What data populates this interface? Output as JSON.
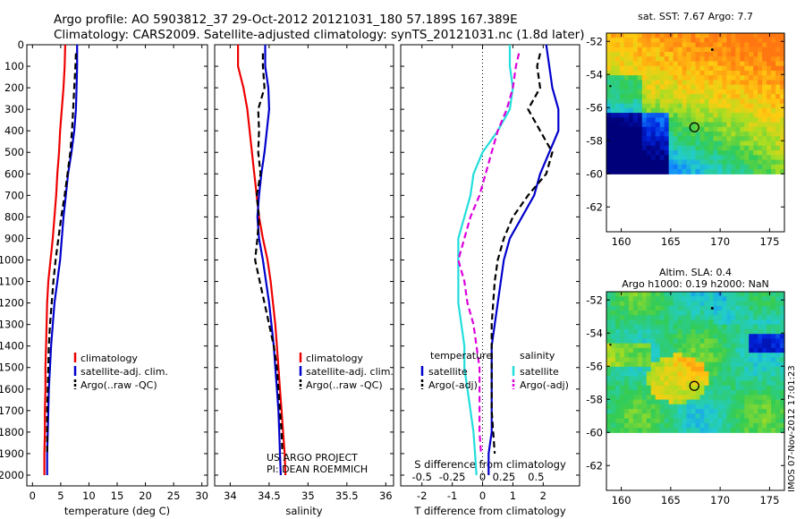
{
  "header": {
    "line1": "Argo profile: AO 5903812_37 29-Oct-2012 20121031_180 57.189S 167.389E",
    "line2": "Climatology: CARS2009. Satellite-adjusted climatology: synTS_20121031.nc (1.8d later)"
  },
  "colors": {
    "climatology": "#ee0000",
    "satellite": "#0000cc",
    "argo": "#000000",
    "sal_satellite": "#22dddd",
    "sal_argo": "#dd00dd"
  },
  "chart_data": [
    {
      "type": "line",
      "id": "temperature",
      "xlabel": "temperature (deg C)",
      "ylabel": "",
      "xlim": [
        -1,
        31
      ],
      "ylim": [
        2050,
        0
      ],
      "xticks": [
        0,
        5,
        10,
        15,
        20,
        25,
        30
      ],
      "yticks": [
        0,
        100,
        200,
        300,
        400,
        500,
        600,
        700,
        800,
        900,
        1000,
        1100,
        1200,
        1300,
        1400,
        1500,
        1600,
        1700,
        1800,
        1900,
        2000
      ],
      "legend": [
        "climatology",
        "satellite-adj. clim.",
        "Argo(..raw -QC)"
      ],
      "series": [
        {
          "name": "climatology",
          "style": "red-solid",
          "x": [
            5.8,
            5.7,
            5.5,
            5.2,
            4.9,
            4.7,
            4.4,
            4.2,
            3.9,
            3.6,
            3.2,
            2.8,
            2.6,
            2.5,
            2.4,
            2.3,
            2.3,
            2.2,
            2.2,
            2.1,
            2.1
          ],
          "y": [
            0,
            100,
            200,
            300,
            400,
            500,
            600,
            700,
            800,
            900,
            1000,
            1100,
            1200,
            1300,
            1400,
            1500,
            1600,
            1700,
            1800,
            1900,
            2000
          ]
        },
        {
          "name": "satellite-adj. clim.",
          "style": "blue-solid",
          "x": [
            7.9,
            7.9,
            7.8,
            7.7,
            7.4,
            6.9,
            6.3,
            5.9,
            5.5,
            5.2,
            4.9,
            4.4,
            3.9,
            3.6,
            3.3,
            3.1,
            2.9,
            2.8,
            2.7,
            2.6,
            2.6
          ],
          "y": [
            0,
            100,
            200,
            300,
            400,
            500,
            600,
            700,
            800,
            900,
            1000,
            1100,
            1200,
            1300,
            1400,
            1500,
            1600,
            1700,
            1800,
            1900,
            2000
          ]
        },
        {
          "name": "Argo(..raw -QC)",
          "style": "black-dash",
          "x": [
            7.7,
            7.6,
            7.4,
            7.2,
            7.0,
            6.7,
            6.2,
            5.7,
            5.1,
            4.6,
            4.1,
            3.7,
            3.4,
            3.1,
            2.9,
            2.8,
            2.7,
            2.6,
            2.6,
            2.6
          ],
          "y": [
            40,
            100,
            200,
            300,
            400,
            500,
            600,
            700,
            800,
            900,
            1000,
            1100,
            1200,
            1300,
            1400,
            1500,
            1600,
            1700,
            1800,
            1900
          ]
        }
      ]
    },
    {
      "type": "line",
      "id": "salinity",
      "xlabel": "salinity",
      "xlim": [
        33.8,
        36.1
      ],
      "ylim": [
        2050,
        0
      ],
      "xticks": [
        34,
        34.5,
        35,
        35.5,
        36
      ],
      "xticklabels": [
        "34",
        "34.5",
        "35",
        "35.5",
        "36"
      ],
      "legend": [
        "climatology",
        "satellite-adj. clim.",
        "Argo(..raw -QC)"
      ],
      "annotation": [
        "US ARGO PROJECT",
        "PI: DEAN ROEMMICH"
      ],
      "series": [
        {
          "name": "climatology",
          "style": "red-solid",
          "x": [
            34.1,
            34.1,
            34.17,
            34.22,
            34.25,
            34.28,
            34.31,
            34.34,
            34.37,
            34.42,
            34.48,
            34.52,
            34.55,
            34.58,
            34.6,
            34.62,
            34.64,
            34.66,
            34.68,
            34.7,
            34.71
          ],
          "y": [
            0,
            100,
            200,
            300,
            400,
            500,
            600,
            700,
            800,
            900,
            1000,
            1100,
            1200,
            1300,
            1400,
            1500,
            1600,
            1700,
            1800,
            1900,
            2000
          ]
        },
        {
          "name": "satellite-adj. clim.",
          "style": "blue-solid",
          "x": [
            34.45,
            34.45,
            34.49,
            34.5,
            34.47,
            34.44,
            34.4,
            34.37,
            34.35,
            34.37,
            34.42,
            34.46,
            34.5,
            34.53,
            34.56,
            34.58,
            34.6,
            34.62,
            34.63,
            34.64,
            34.65
          ],
          "y": [
            0,
            100,
            200,
            300,
            400,
            500,
            600,
            700,
            800,
            900,
            1000,
            1100,
            1200,
            1300,
            1400,
            1500,
            1600,
            1700,
            1800,
            1900,
            2000
          ]
        },
        {
          "name": "Argo(..raw -QC)",
          "style": "black-dash",
          "x": [
            34.42,
            34.42,
            34.44,
            34.36,
            34.37,
            34.36,
            34.39,
            34.34,
            34.37,
            34.35,
            34.32,
            34.38,
            34.44,
            34.5,
            34.56,
            34.6,
            34.62,
            34.64,
            34.66,
            34.67
          ],
          "y": [
            40,
            100,
            200,
            300,
            400,
            500,
            600,
            700,
            800,
            900,
            1000,
            1100,
            1200,
            1300,
            1400,
            1500,
            1600,
            1700,
            1800,
            1900
          ]
        }
      ]
    },
    {
      "type": "line",
      "id": "difference",
      "xlabel": "T difference from climatology",
      "xlabel2": "S difference from climatology",
      "xlim": [
        -2.7,
        3.2
      ],
      "ylim": [
        2050,
        0
      ],
      "xticks": [
        -2,
        -1,
        0,
        1,
        2
      ],
      "xticks_s": [
        -0.5,
        -0.25,
        0,
        0.25,
        0.5
      ],
      "xticks_s_pos": [
        -2,
        -1,
        0,
        1,
        2
      ],
      "legend_t_title": "temperature",
      "legend_s_title": "salinity",
      "legend_t": [
        "satellite",
        "Argo(-adj)"
      ],
      "legend_s": [
        "satellite",
        "Argo(-adj)"
      ],
      "series": [
        {
          "name": "T satellite",
          "style": "blue-solid",
          "x": [
            2.1,
            2.2,
            2.3,
            2.5,
            2.5,
            2.2,
            1.9,
            1.7,
            1.3,
            0.9,
            0.7,
            0.6,
            0.5,
            0.4,
            0.3,
            0.3,
            0.3,
            0.3,
            0.3,
            0.2,
            0.2
          ],
          "y": [
            0,
            100,
            200,
            300,
            400,
            500,
            600,
            700,
            800,
            900,
            1000,
            1100,
            1200,
            1300,
            1400,
            1500,
            1600,
            1700,
            1800,
            1900,
            2000
          ]
        },
        {
          "name": "T Argo(-adj)",
          "style": "black-dash",
          "x": [
            1.9,
            1.8,
            1.9,
            1.5,
            1.9,
            2.3,
            2.1,
            1.5,
            1.0,
            0.7,
            0.5,
            0.4,
            0.35,
            0.3,
            0.3,
            0.3,
            0.3,
            0.3,
            0.35,
            0.4
          ],
          "y": [
            40,
            100,
            200,
            300,
            400,
            500,
            600,
            700,
            800,
            900,
            1000,
            1100,
            1200,
            1300,
            1400,
            1500,
            1600,
            1700,
            1800,
            1900
          ]
        },
        {
          "name": "S satellite",
          "style": "cyan-solid",
          "x": [
            0.9,
            0.9,
            1.0,
            0.9,
            0.5,
            0.0,
            -0.3,
            -0.4,
            -0.6,
            -0.8,
            -0.8,
            -0.8,
            -0.8,
            -0.7,
            -0.6,
            -0.6,
            -0.5,
            -0.4,
            -0.3,
            -0.25,
            -0.2
          ],
          "y": [
            0,
            100,
            200,
            300,
            400,
            500,
            600,
            700,
            800,
            900,
            1000,
            1100,
            1200,
            1300,
            1400,
            1500,
            1600,
            1700,
            1800,
            1900,
            2000
          ]
        },
        {
          "name": "S Argo(-adj)",
          "style": "magenta-dash",
          "x": [
            1.2,
            1.1,
            1.0,
            0.8,
            0.5,
            0.3,
            0.1,
            -0.1,
            -0.4,
            -0.6,
            -0.8,
            -0.6,
            -0.5,
            -0.3,
            -0.2,
            -0.1,
            -0.1,
            -0.1,
            -0.1,
            -0.05
          ],
          "y": [
            40,
            100,
            200,
            300,
            400,
            500,
            600,
            700,
            800,
            900,
            1000,
            1100,
            1200,
            1300,
            1400,
            1500,
            1600,
            1700,
            1800,
            1900
          ]
        }
      ]
    },
    {
      "type": "heatmap",
      "id": "sst_map",
      "title": "sat. SST: 7.67 Argo: 7.7",
      "xlim": [
        158.5,
        176.5
      ],
      "ylim": [
        -60,
        -51.5
      ],
      "ylim_axis": [
        -63.5,
        -51.5
      ],
      "xticks": [
        160,
        165,
        170,
        175
      ],
      "yticks": [
        -52,
        -54,
        -56,
        -58,
        -60,
        -62
      ],
      "marker": {
        "lon": 167.389,
        "lat": -57.189
      }
    },
    {
      "type": "heatmap",
      "id": "sla_map",
      "title": "Altim. SLA: 0.4",
      "subtitle": "Argo h1000: 0.19 h2000: NaN",
      "xlim": [
        158.5,
        176.5
      ],
      "ylim": [
        -60,
        -51.5
      ],
      "ylim_axis": [
        -63.5,
        -51.5
      ],
      "xticks": [
        160,
        165,
        170,
        175
      ],
      "yticks": [
        -52,
        -54,
        -56,
        -58,
        -60,
        -62
      ],
      "marker": {
        "lon": 167.389,
        "lat": -57.189
      }
    }
  ],
  "footer": {
    "stamp": "IMOS 07-Nov-2012 17:01:23"
  }
}
